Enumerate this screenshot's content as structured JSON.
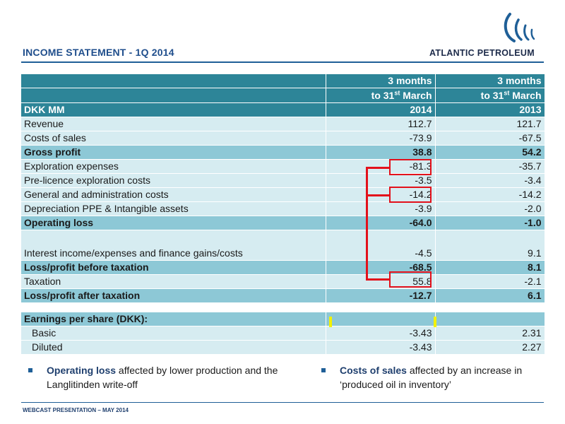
{
  "header": {
    "title": "INCOME STATEMENT - 1Q 2014",
    "logo_text": "ATLANTIC PETROLEUM"
  },
  "table": {
    "col_headers": [
      {
        "line1": "3 months",
        "line2_prefix": "to 31",
        "line2_sup": "st",
        "line2_suffix": " March"
      },
      {
        "line1": "3 months",
        "line2_prefix": "to 31",
        "line2_sup": "st",
        "line2_suffix": " March"
      }
    ],
    "currency_row": {
      "label": "DKK MM",
      "y1": "2014",
      "y2": "2013"
    },
    "rows": [
      {
        "label": "Revenue",
        "v2014": "112.7",
        "v2013": "121.7"
      },
      {
        "label": "Costs of sales",
        "v2014": "-73.9",
        "v2013": "-67.5"
      },
      {
        "label": "Gross profit",
        "v2014": "38.8",
        "v2013": "54.2"
      },
      {
        "label": "Exploration expenses",
        "v2014": "-81.3",
        "v2013": "-35.7"
      },
      {
        "label": "Pre-licence exploration costs",
        "v2014": "-3.5",
        "v2013": "-3.4"
      },
      {
        "label": "General and administration costs",
        "v2014": "-14.2",
        "v2013": "-14.2"
      },
      {
        "label": "Depreciation PPE & Intangible assets",
        "v2014": "-3.9",
        "v2013": "-2.0"
      },
      {
        "label": "Operating loss",
        "v2014": "-64.0",
        "v2013": "-1.0"
      },
      {
        "label": "Interest income/expenses and finance gains/costs",
        "v2014": "-4.5",
        "v2013": "9.1"
      },
      {
        "label": "Loss/profit before taxation",
        "v2014": "-68.5",
        "v2013": "8.1"
      },
      {
        "label": "Taxation",
        "v2014": "55.8",
        "v2013": "-2.1"
      },
      {
        "label": "Loss/profit after taxation",
        "v2014": "-12.7",
        "v2013": "6.1"
      }
    ],
    "eps": {
      "label": "Earnings per share (DKK):",
      "rows": [
        {
          "label": "Basic",
          "v2014": "-3.43",
          "v2013": "2.31"
        },
        {
          "label": "Diluted",
          "v2014": "-3.43",
          "v2013": "2.27"
        }
      ]
    }
  },
  "bullets": [
    {
      "lead": "Operating loss",
      "text": " affected by lower production and the Langlitinden write-off"
    },
    {
      "lead": "Costs of sales",
      "text": " affected by an increase in ‘produced oil in inventory’"
    }
  ],
  "footer": "WEBCAST PRESENTATION – MAY 2014",
  "colors": {
    "header": "#2d8598",
    "row_light": "#d6ecf1",
    "row_total": "#8dc8d6",
    "highlight": "#e3111b",
    "title": "#1f4e8c"
  }
}
